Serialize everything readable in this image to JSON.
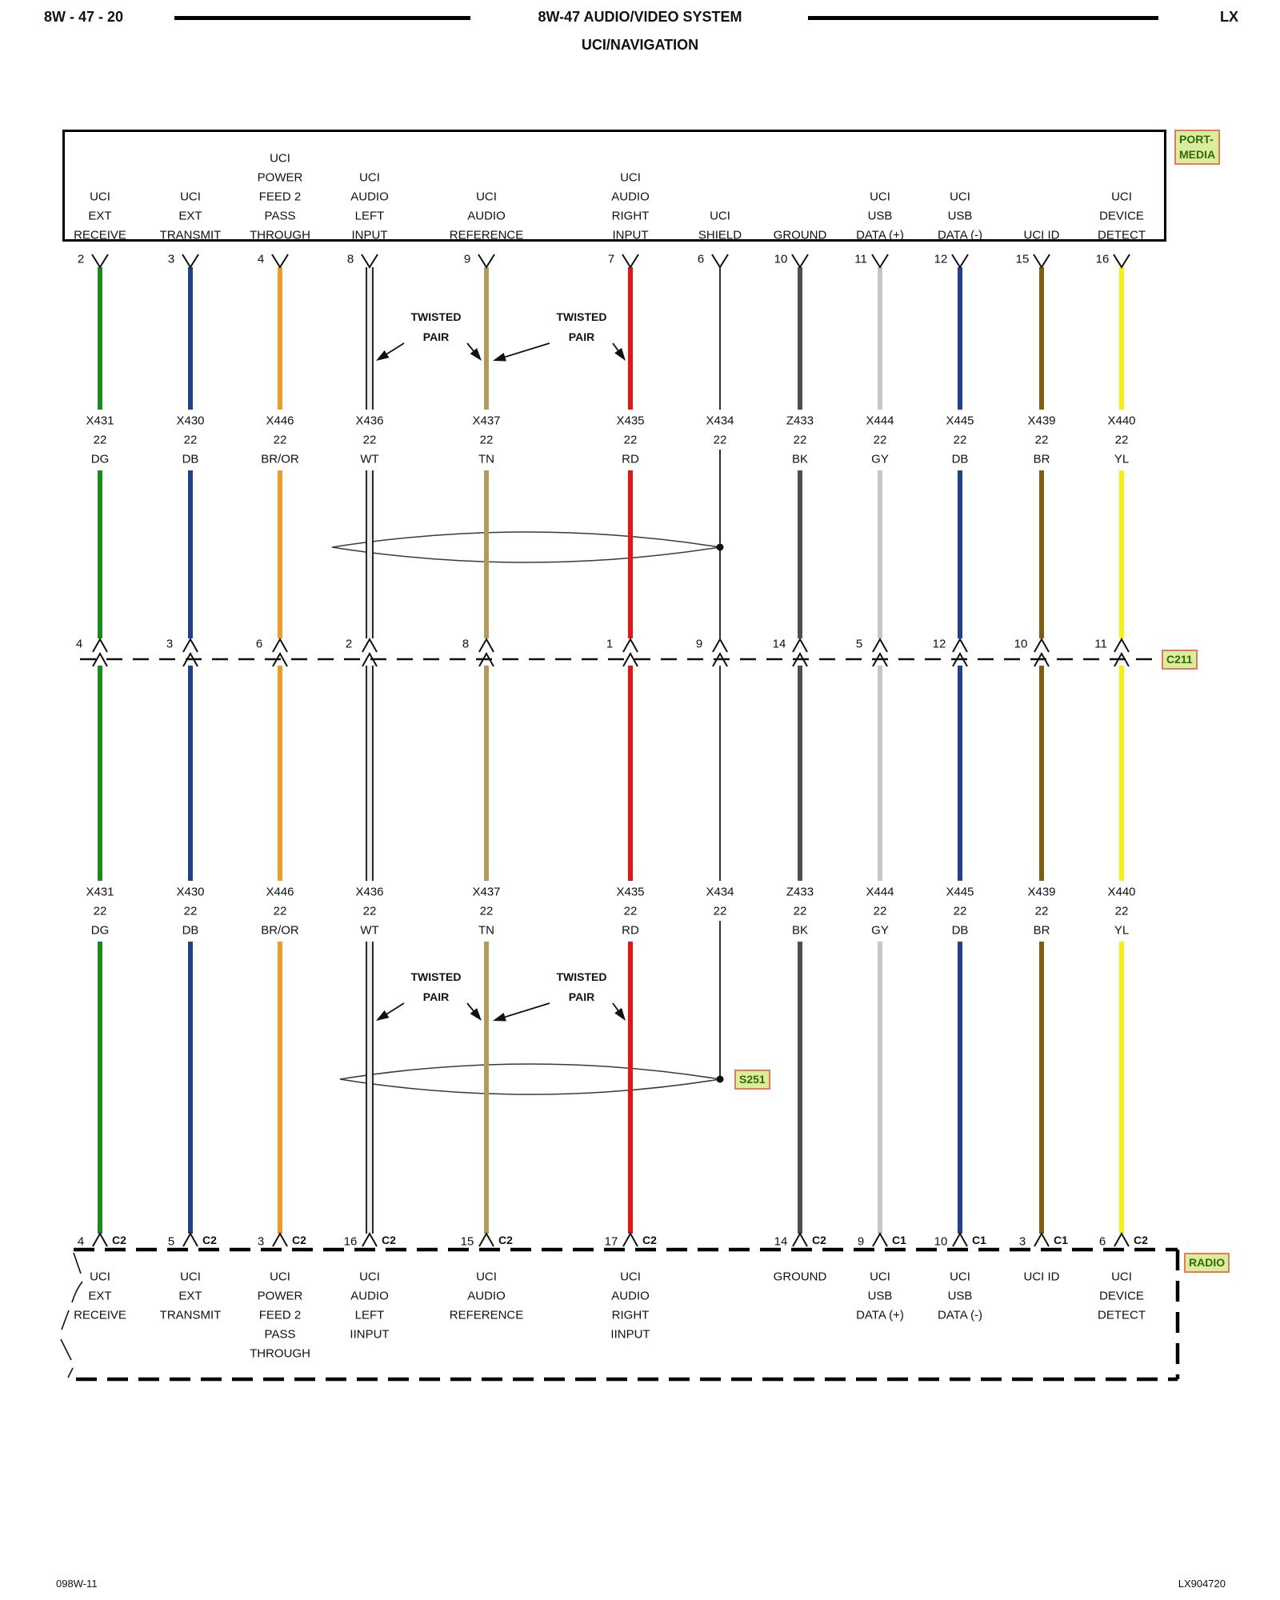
{
  "header": {
    "page_ref": "8W - 47 - 20",
    "title": "8W-47 AUDIO/VIDEO SYSTEM",
    "subtitle": "UCI/NAVIGATION",
    "platform": "LX"
  },
  "footer": {
    "left": "098W-11",
    "right": "LX904720"
  },
  "top_connector": {
    "name": "PORT-MEDIA",
    "label_line1": "PORT-",
    "label_line2": "MEDIA"
  },
  "middle_connector": {
    "name": "C211"
  },
  "splice": {
    "name": "S251"
  },
  "bottom_connector": {
    "name": "RADIO"
  },
  "twisted_pair": {
    "line1": "TWISTED",
    "line2": "PAIR"
  },
  "highlight_colors": {
    "bg": "#dcec9f",
    "border": "#e87a5c",
    "text": "#2e6b00"
  },
  "wires": [
    {
      "circuit": "X431",
      "gauge": "22",
      "color_code": "DG",
      "color": "#1d8a1d",
      "style": "solid",
      "top_pin": "2",
      "top_label": [
        "UCI",
        "EXT",
        "RECEIVE"
      ],
      "c211_pin": "4",
      "bottom_pin": "4",
      "bottom_connector": "C2",
      "bottom_label": [
        "UCI",
        "EXT",
        "RECEIVE"
      ]
    },
    {
      "circuit": "X430",
      "gauge": "22",
      "color_code": "DB",
      "color": "#20418e",
      "style": "solid",
      "top_pin": "3",
      "top_label": [
        "UCI",
        "EXT",
        "TRANSMIT"
      ],
      "c211_pin": "3",
      "bottom_pin": "5",
      "bottom_connector": "C2",
      "bottom_label": [
        "UCI",
        "EXT",
        "TRANSMIT"
      ]
    },
    {
      "circuit": "X446",
      "gauge": "22",
      "color_code": "BR/OR",
      "color": "#ef9b28",
      "style": "solid",
      "top_pin": "4",
      "top_label": [
        "UCI",
        "POWER",
        "FEED 2",
        "PASS",
        "THROUGH"
      ],
      "c211_pin": "6",
      "bottom_pin": "3",
      "bottom_connector": "C2",
      "bottom_label": [
        "UCI",
        "POWER",
        "FEED 2",
        "PASS",
        "THROUGH"
      ]
    },
    {
      "circuit": "X436",
      "gauge": "22",
      "color_code": "WT",
      "color": "#ededed",
      "style": "double",
      "top_pin": "8",
      "top_label": [
        "UCI",
        "AUDIO",
        "LEFT",
        "INPUT"
      ],
      "c211_pin": "2",
      "bottom_pin": "16",
      "bottom_connector": "C2",
      "bottom_label": [
        "UCI",
        "AUDIO",
        "LEFT",
        "IINPUT"
      ]
    },
    {
      "circuit": "X437",
      "gauge": "22",
      "color_code": "TN",
      "color": "#b29a5d",
      "style": "solid",
      "top_pin": "9",
      "top_label": [
        "UCI",
        "AUDIO",
        "REFERENCE"
      ],
      "c211_pin": "8",
      "bottom_pin": "15",
      "bottom_connector": "C2",
      "bottom_label": [
        "UCI",
        "AUDIO",
        "REFERENCE"
      ]
    },
    {
      "circuit": "X435",
      "gauge": "22",
      "color_code": "RD",
      "color": "#e31515",
      "style": "solid",
      "top_pin": "7",
      "top_label": [
        "UCI",
        "AUDIO",
        "RIGHT",
        "INPUT"
      ],
      "c211_pin": "1",
      "bottom_pin": "17",
      "bottom_connector": "C2",
      "bottom_label": [
        "UCI",
        "AUDIO",
        "RIGHT",
        "IINPUT"
      ]
    },
    {
      "circuit": "X434",
      "gauge": "22",
      "color_code": "",
      "color": "#1a1a1a",
      "style": "thin",
      "top_pin": "6",
      "top_label": [
        "UCI",
        "SHIELD"
      ],
      "c211_pin": "9",
      "bottom_pin": "",
      "bottom_connector": "",
      "bottom_label": [],
      "ends_at_splice": true
    },
    {
      "circuit": "Z433",
      "gauge": "22",
      "color_code": "BK",
      "color": "#4f4f4f",
      "style": "solid",
      "top_pin": "10",
      "top_label": [
        "GROUND"
      ],
      "c211_pin": "14",
      "bottom_pin": "14",
      "bottom_connector": "C2",
      "bottom_label": [
        "GROUND"
      ]
    },
    {
      "circuit": "X444",
      "gauge": "22",
      "color_code": "GY",
      "color": "#c6c6c6",
      "style": "solid",
      "top_pin": "11",
      "top_label": [
        "UCI",
        "USB",
        "DATA (+)"
      ],
      "c211_pin": "5",
      "bottom_pin": "9",
      "bottom_connector": "C1",
      "bottom_label": [
        "UCI",
        "USB",
        "DATA (+)"
      ]
    },
    {
      "circuit": "X445",
      "gauge": "22",
      "color_code": "DB",
      "color": "#20418e",
      "style": "solid",
      "top_pin": "12",
      "top_label": [
        "UCI",
        "USB",
        "DATA (-)"
      ],
      "c211_pin": "12",
      "bottom_pin": "10",
      "bottom_connector": "C1",
      "bottom_label": [
        "UCI",
        "USB",
        "DATA (-)"
      ]
    },
    {
      "circuit": "X439",
      "gauge": "22",
      "color_code": "BR",
      "color": "#7d5f12",
      "style": "solid",
      "top_pin": "15",
      "top_label": [
        "UCI ID"
      ],
      "c211_pin": "10",
      "bottom_pin": "3",
      "bottom_connector": "C1",
      "bottom_label": [
        "UCI ID"
      ]
    },
    {
      "circuit": "X440",
      "gauge": "22",
      "color_code": "YL",
      "color": "#f7ef12",
      "style": "solid",
      "top_pin": "16",
      "top_label": [
        "UCI",
        "DEVICE",
        "DETECT"
      ],
      "c211_pin": "11",
      "bottom_pin": "6",
      "bottom_connector": "C2",
      "bottom_label": [
        "UCI",
        "DEVICE",
        "DETECT"
      ]
    }
  ]
}
